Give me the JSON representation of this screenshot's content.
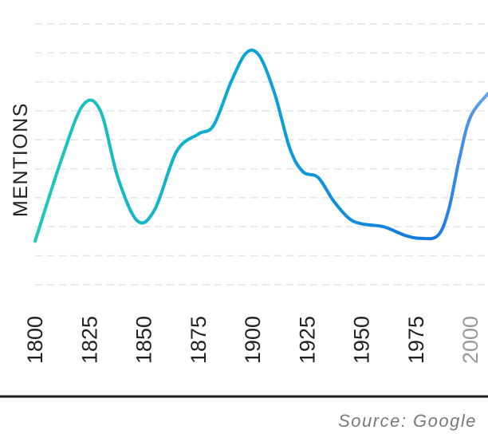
{
  "chart_data": {
    "type": "line",
    "ylabel": "MENTIONS",
    "x": [
      1800,
      1812,
      1822,
      1830,
      1838,
      1847,
      1855,
      1865,
      1875,
      1882,
      1890,
      1897,
      1903,
      1910,
      1917,
      1923,
      1930,
      1937,
      1944,
      1950,
      1960,
      1970,
      1977,
      1985,
      1990,
      1995,
      2000,
      2008
    ],
    "values": [
      0.5,
      3.3,
      5.2,
      5.0,
      2.7,
      1.2,
      1.6,
      3.6,
      4.2,
      4.5,
      6.0,
      7.0,
      6.9,
      5.6,
      3.7,
      2.9,
      2.7,
      1.9,
      1.3,
      1.1,
      1.0,
      0.7,
      0.6,
      0.7,
      1.6,
      3.4,
      4.8,
      5.6
    ],
    "xticks": [
      "1800",
      "1825",
      "1850",
      "1875",
      "1900",
      "1925",
      "1950",
      "1975",
      "2000"
    ],
    "xlim": [
      1800,
      2008
    ],
    "ylim": [
      -1.5,
      8
    ],
    "grid": true,
    "gradient": [
      "#1ec9b8",
      "#0aa3d6",
      "#1577e0",
      "#6aa0f0"
    ],
    "future_from": 1988
  },
  "source": "Source: Google"
}
